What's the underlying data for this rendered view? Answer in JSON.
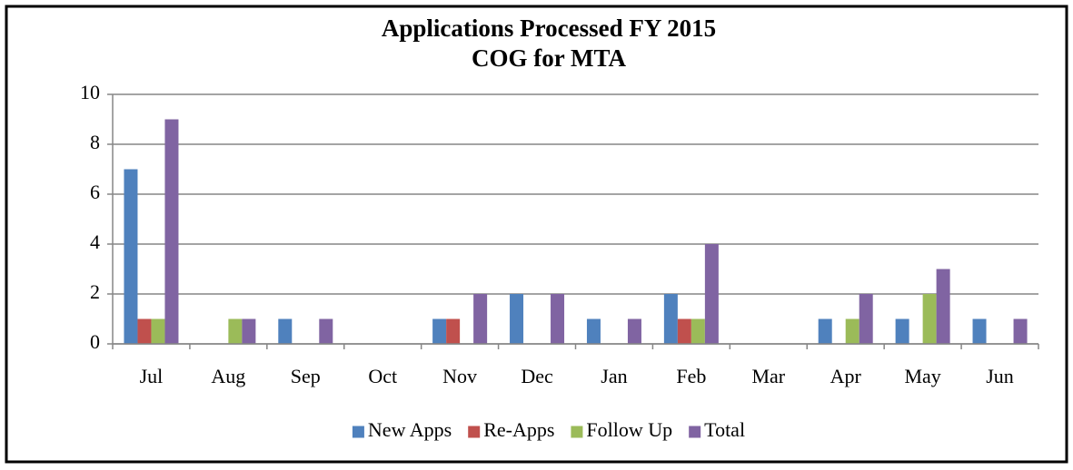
{
  "chart_data": {
    "type": "bar",
    "title": "Applications Processed FY 2015",
    "subtitle": "COG for MTA",
    "categories": [
      "Jul",
      "Aug",
      "Sep",
      "Oct",
      "Nov",
      "Dec",
      "Jan",
      "Feb",
      "Mar",
      "Apr",
      "May",
      "Jun"
    ],
    "series": [
      {
        "name": "New Apps",
        "color": "#4f81bd",
        "values": [
          7,
          0,
          1,
          0,
          1,
          2,
          1,
          2,
          0,
          1,
          1,
          1
        ]
      },
      {
        "name": "Re-Apps",
        "color": "#c0504d",
        "values": [
          1,
          0,
          0,
          0,
          1,
          0,
          0,
          1,
          0,
          0,
          0,
          0
        ]
      },
      {
        "name": "Follow Up",
        "color": "#9bbb59",
        "values": [
          1,
          1,
          0,
          0,
          0,
          0,
          0,
          1,
          0,
          1,
          2,
          0
        ]
      },
      {
        "name": "Total",
        "color": "#8064a2",
        "values": [
          9,
          1,
          1,
          0,
          2,
          2,
          1,
          4,
          0,
          2,
          3,
          1
        ]
      }
    ],
    "ylim": [
      0,
      10
    ],
    "yticks": [
      0,
      2,
      4,
      6,
      8,
      10
    ],
    "grid": true,
    "legend": "bottom"
  }
}
